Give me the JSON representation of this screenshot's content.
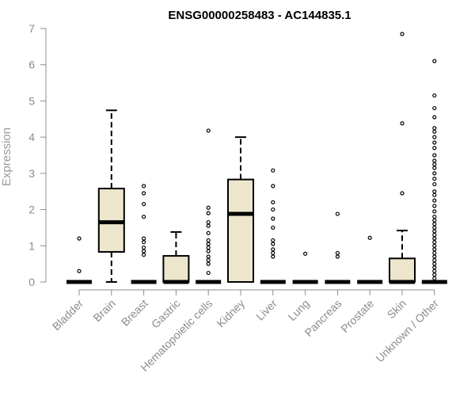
{
  "chart_data": {
    "type": "boxplot",
    "title": "ENSG00000258483 - AC144835.1",
    "xlabel": "",
    "ylabel": "Expression",
    "ylim": [
      0,
      7
    ],
    "yticks": [
      "0",
      "1",
      "2",
      "3",
      "4",
      "5",
      "6",
      "7"
    ],
    "grid": false,
    "colors": {
      "box_fill": "#ede6cc",
      "stroke": "#000000",
      "axis_text": "#8c8c8c"
    },
    "categories": [
      "Bladder",
      "Brain",
      "Breast",
      "Gastric",
      "Hematopoietic cells",
      "Kidney",
      "Liver",
      "Lung",
      "Pancreas",
      "Prostate",
      "Skin",
      "Unknown / Other"
    ],
    "boxes": [
      {
        "category": "Bladder",
        "q1": 0,
        "median": 0,
        "q3": 0,
        "whisker_low": 0,
        "whisker_high": 0,
        "outliers": [
          0.3,
          1.2
        ]
      },
      {
        "category": "Brain",
        "q1": 0.83,
        "median": 1.65,
        "q3": 2.58,
        "whisker_low": 0,
        "whisker_high": 4.74,
        "outliers": []
      },
      {
        "category": "Breast",
        "q1": 0,
        "median": 0,
        "q3": 0,
        "whisker_low": 0,
        "whisker_high": 0,
        "outliers": [
          0.75,
          0.85,
          0.95,
          1.1,
          1.2,
          1.8,
          2.15,
          2.45,
          2.65
        ]
      },
      {
        "category": "Gastric",
        "q1": 0,
        "median": 0,
        "q3": 0.72,
        "whisker_low": 0,
        "whisker_high": 1.38,
        "outliers": []
      },
      {
        "category": "Hematopoietic cells",
        "q1": 0,
        "median": 0,
        "q3": 0,
        "whisker_low": 0,
        "whisker_high": 0,
        "outliers": [
          0.25,
          0.5,
          0.6,
          0.7,
          0.85,
          0.95,
          1.05,
          1.15,
          1.35,
          1.55,
          1.65,
          1.9,
          2.05,
          4.18
        ]
      },
      {
        "category": "Kidney",
        "q1": 0,
        "median": 1.88,
        "q3": 2.83,
        "whisker_low": 0,
        "whisker_high": 4.0,
        "outliers": []
      },
      {
        "category": "Liver",
        "q1": 0,
        "median": 0,
        "q3": 0,
        "whisker_low": 0,
        "whisker_high": 0,
        "outliers": [
          0.7,
          0.8,
          0.9,
          1.05,
          1.15,
          1.5,
          1.75,
          2.0,
          2.2,
          2.65,
          3.08
        ]
      },
      {
        "category": "Lung",
        "q1": 0,
        "median": 0,
        "q3": 0,
        "whisker_low": 0,
        "whisker_high": 0,
        "outliers": [
          0.78
        ]
      },
      {
        "category": "Pancreas",
        "q1": 0,
        "median": 0,
        "q3": 0,
        "whisker_low": 0,
        "whisker_high": 0,
        "outliers": [
          0.7,
          0.8,
          1.88
        ]
      },
      {
        "category": "Prostate",
        "q1": 0,
        "median": 0,
        "q3": 0,
        "whisker_low": 0,
        "whisker_high": 0,
        "outliers": [
          1.22
        ]
      },
      {
        "category": "Skin",
        "q1": 0,
        "median": 0,
        "q3": 0.65,
        "whisker_low": 0,
        "whisker_high": 1.42,
        "outliers": [
          2.45,
          4.38,
          6.85
        ]
      },
      {
        "category": "Unknown / Other",
        "q1": 0,
        "median": 0,
        "q3": 0,
        "whisker_low": 0,
        "whisker_high": 0,
        "outliers": [
          0.1,
          0.2,
          0.3,
          0.4,
          0.5,
          0.6,
          0.7,
          0.8,
          0.9,
          1.0,
          1.1,
          1.2,
          1.3,
          1.4,
          1.5,
          1.6,
          1.7,
          1.8,
          1.95,
          2.1,
          2.25,
          2.4,
          2.5,
          2.7,
          2.85,
          3.0,
          3.15,
          3.25,
          3.35,
          3.5,
          3.7,
          3.85,
          4.0,
          4.15,
          4.25,
          4.55,
          4.8,
          5.15,
          6.1
        ]
      }
    ]
  }
}
